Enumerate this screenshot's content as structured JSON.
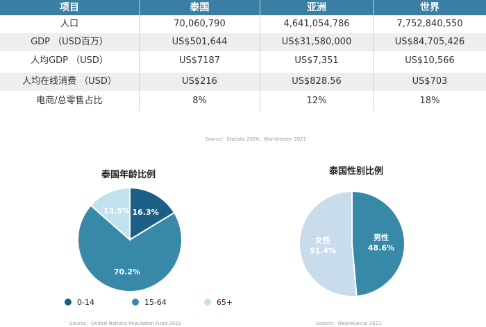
{
  "table": {
    "headers": [
      "项目",
      "泰国",
      "亚洲",
      "世界"
    ],
    "rows": [
      [
        "人口",
        "70,060,790",
        "4,641,054,786",
        "7,752,840,550"
      ],
      [
        "GDP （USD百万）",
        "US$501,644",
        "US$31,580,000",
        "US$84,705,426"
      ],
      [
        "人均GDP （USD）",
        "US$7187",
        "US$7,351",
        "US$10,566"
      ],
      [
        "人均在线消费 （USD）",
        "US$216",
        "US$828.56",
        "US$703"
      ],
      [
        "电商/总零售占比",
        "8%",
        "12%",
        "18%"
      ]
    ],
    "source": "Source：Statista 2020，Worldmeter 2021"
  },
  "colors": {
    "header": "#3a7fa3",
    "dark_blue": "#1c5f86",
    "mid_blue": "#3888a8",
    "light_blue": "#c2e1ee",
    "pale_blue": "#c8dceb"
  },
  "chart_data": [
    {
      "type": "pie",
      "title": "泰国年龄比例",
      "categories": [
        "0-14",
        "15-64",
        "65+"
      ],
      "values": [
        16.3,
        70.2,
        13.5
      ],
      "labels": [
        "16.3%",
        "70.2%",
        "13.5%"
      ],
      "colors": [
        "#1c5f86",
        "#3888a8",
        "#c2e1ee"
      ],
      "legend": "bottom",
      "source": "Source：United Nations Population Fund 2021"
    },
    {
      "type": "pie",
      "title": "泰国性别比例",
      "categories": [
        "男性",
        "女性"
      ],
      "values": [
        48.6,
        51.4
      ],
      "labels": [
        "男性\n48.6%",
        "女性\n51.4%"
      ],
      "colors": [
        "#3888a8",
        "#c8dceb"
      ],
      "source": "Source：WeAreSocial 2021"
    }
  ]
}
